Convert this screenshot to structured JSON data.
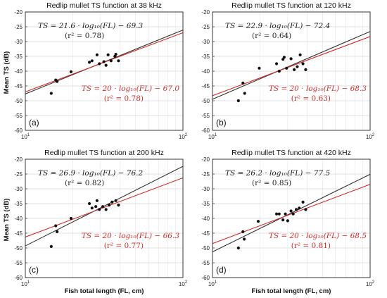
{
  "figure": {
    "ylabel": "Mean TS (dB)",
    "xlabel": "Fish total length (FL, cm)"
  },
  "chart_data": [
    {
      "type": "scatter",
      "panel_label": "(a)",
      "title": "Redlip mullet TS function at 38 kHz",
      "xscale": "log",
      "xlim": [
        10,
        100
      ],
      "ylim": [
        -60,
        -20
      ],
      "xticks": [
        10,
        100
      ],
      "yticks": [
        -60,
        -55,
        -50,
        -45,
        -40,
        -35,
        -30,
        -25,
        -20
      ],
      "grid": true,
      "points": [
        {
          "x": 14.6,
          "y": -47.5
        },
        {
          "x": 15.6,
          "y": -43.0
        },
        {
          "x": 15.9,
          "y": -43.5
        },
        {
          "x": 19.5,
          "y": -40.2
        },
        {
          "x": 25.5,
          "y": -37.0
        },
        {
          "x": 26.5,
          "y": -36.5
        },
        {
          "x": 28.5,
          "y": -34.5
        },
        {
          "x": 29.5,
          "y": -37.5
        },
        {
          "x": 31.5,
          "y": -36.8
        },
        {
          "x": 32.5,
          "y": -38.0
        },
        {
          "x": 33.5,
          "y": -34.5
        },
        {
          "x": 35.0,
          "y": -36.5
        },
        {
          "x": 37.0,
          "y": -35.0
        },
        {
          "x": 37.5,
          "y": -34.3
        },
        {
          "x": 39.0,
          "y": -36.5
        }
      ],
      "fits": [
        {
          "color": "#333333",
          "slope": 21.6,
          "intercept": -69.3,
          "equation": "TS = 21.6 · log₁₀(FL) − 69.3",
          "r2_label": "(r² = 0.78)"
        },
        {
          "color": "#d22a2a",
          "slope": 20,
          "intercept": -67.0,
          "equation": "TS = 20 · log₁₀(FL) − 67.0",
          "r2_label": "(r² = 0.78)"
        }
      ]
    },
    {
      "type": "scatter",
      "panel_label": "(b)",
      "title": "Redlip mullet TS function at 120 kHz",
      "xscale": "log",
      "xlim": [
        10,
        100
      ],
      "ylim": [
        -60,
        -20
      ],
      "xticks": [
        10,
        100
      ],
      "yticks": [
        -60,
        -55,
        -50,
        -45,
        -40,
        -35,
        -30,
        -25,
        -20
      ],
      "grid": true,
      "points": [
        {
          "x": 14.6,
          "y": -50.0
        },
        {
          "x": 15.6,
          "y": -44.0
        },
        {
          "x": 16.0,
          "y": -47.5
        },
        {
          "x": 19.8,
          "y": -39.0
        },
        {
          "x": 25.5,
          "y": -37.5
        },
        {
          "x": 26.5,
          "y": -40.0
        },
        {
          "x": 28.0,
          "y": -36.0
        },
        {
          "x": 28.5,
          "y": -35.3
        },
        {
          "x": 29.5,
          "y": -39.0
        },
        {
          "x": 31.5,
          "y": -35.8
        },
        {
          "x": 33.0,
          "y": -39.5
        },
        {
          "x": 34.5,
          "y": -38.5
        },
        {
          "x": 36.0,
          "y": -34.5
        },
        {
          "x": 37.5,
          "y": -37.5
        },
        {
          "x": 39.0,
          "y": -39.5
        }
      ],
      "fits": [
        {
          "color": "#333333",
          "slope": 22.9,
          "intercept": -72.4,
          "equation": "TS = 22.9 · log₁₀(FL) − 72.4",
          "r2_label": "(r² = 0.64)"
        },
        {
          "color": "#d22a2a",
          "slope": 20,
          "intercept": -68.3,
          "equation": "TS = 20 · log₁₀(FL) − 68.3",
          "r2_label": "(r² = 0.63)"
        }
      ]
    },
    {
      "type": "scatter",
      "panel_label": "(c)",
      "title": "Redlip mullet TS function at 200 kHz",
      "xscale": "log",
      "xlim": [
        10,
        100
      ],
      "ylim": [
        -60,
        -20
      ],
      "xticks": [
        10,
        100
      ],
      "yticks": [
        -60,
        -55,
        -50,
        -45,
        -40,
        -35,
        -30,
        -25,
        -20
      ],
      "grid": true,
      "points": [
        {
          "x": 14.6,
          "y": -49.5
        },
        {
          "x": 15.6,
          "y": -42.5
        },
        {
          "x": 15.9,
          "y": -44.5
        },
        {
          "x": 19.5,
          "y": -40.0
        },
        {
          "x": 25.5,
          "y": -35.0
        },
        {
          "x": 26.5,
          "y": -36.5
        },
        {
          "x": 28.0,
          "y": -36.0
        },
        {
          "x": 28.5,
          "y": -34.0
        },
        {
          "x": 29.5,
          "y": -37.0
        },
        {
          "x": 31.0,
          "y": -36.0
        },
        {
          "x": 32.5,
          "y": -37.0
        },
        {
          "x": 34.0,
          "y": -35.5
        },
        {
          "x": 35.5,
          "y": -34.5
        },
        {
          "x": 37.5,
          "y": -34.0
        },
        {
          "x": 39.0,
          "y": -35.5
        }
      ],
      "fits": [
        {
          "color": "#333333",
          "slope": 26.9,
          "intercept": -76.2,
          "equation": "TS = 26.9 · log₁₀(FL) − 76.2",
          "r2_label": "(r² = 0.82)"
        },
        {
          "color": "#d22a2a",
          "slope": 20,
          "intercept": -66.3,
          "equation": "TS = 20 · log₁₀(FL) − 66.3",
          "r2_label": "(r² = 0.77)"
        }
      ]
    },
    {
      "type": "scatter",
      "panel_label": "(d)",
      "title": "Redlip mullet TS function at 420 kHz",
      "xscale": "log",
      "xlim": [
        10,
        100
      ],
      "ylim": [
        -60,
        -20
      ],
      "xticks": [
        10,
        100
      ],
      "yticks": [
        -60,
        -55,
        -50,
        -45,
        -40,
        -35,
        -30,
        -25,
        -20
      ],
      "grid": true,
      "points": [
        {
          "x": 14.6,
          "y": -50.0
        },
        {
          "x": 15.6,
          "y": -44.5
        },
        {
          "x": 15.9,
          "y": -47.0
        },
        {
          "x": 19.5,
          "y": -41.0
        },
        {
          "x": 25.5,
          "y": -38.5
        },
        {
          "x": 26.5,
          "y": -38.5
        },
        {
          "x": 28.0,
          "y": -40.5
        },
        {
          "x": 29.0,
          "y": -38.5
        },
        {
          "x": 30.0,
          "y": -40.8
        },
        {
          "x": 31.5,
          "y": -37.5
        },
        {
          "x": 32.5,
          "y": -38.5
        },
        {
          "x": 34.0,
          "y": -37.0
        },
        {
          "x": 35.5,
          "y": -36.5
        },
        {
          "x": 37.5,
          "y": -34.5
        },
        {
          "x": 39.0,
          "y": -37.0
        }
      ],
      "fits": [
        {
          "color": "#333333",
          "slope": 26.2,
          "intercept": -77.5,
          "equation": "TS = 26.2 · log₁₀(FL) − 77.5",
          "r2_label": "(r² = 0.85)"
        },
        {
          "color": "#d22a2a",
          "slope": 20,
          "intercept": -68.5,
          "equation": "TS = 20 · log₁₀(FL) − 68.5",
          "r2_label": "(r² = 0.81)"
        }
      ]
    }
  ]
}
